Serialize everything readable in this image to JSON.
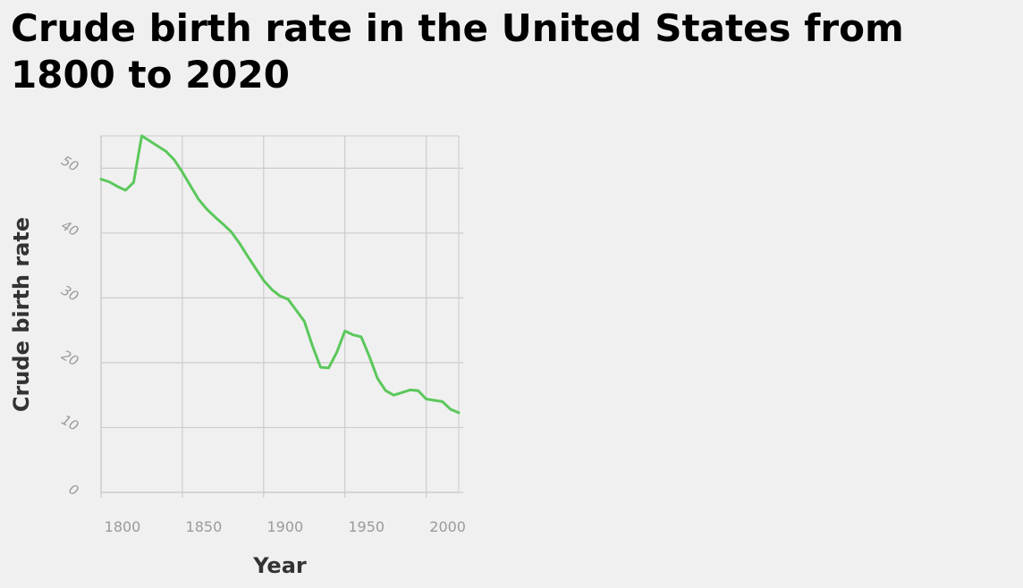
{
  "chart_data": {
    "type": "line",
    "title": "Crude birth rate in the United States from 1800 to 2020",
    "xlabel": "Year",
    "ylabel": "Crude birth rate",
    "xlim": [
      1800,
      2020
    ],
    "ylim": [
      0,
      55
    ],
    "x_ticks": [
      1800,
      1850,
      1900,
      1950,
      2000
    ],
    "x_tick_labels": [
      "1800",
      "1850",
      "1900",
      "1950",
      "2000"
    ],
    "y_ticks": [
      0,
      10,
      20,
      30,
      40,
      50
    ],
    "y_tick_labels": [
      "0",
      "10",
      "20",
      "30",
      "40",
      "50"
    ],
    "grid": true,
    "legend": "none",
    "series": [
      {
        "color": "#5bc85b",
        "x": [
          1800,
          1805,
          1810,
          1815,
          1820,
          1825,
          1830,
          1835,
          1840,
          1845,
          1850,
          1855,
          1860,
          1865,
          1870,
          1875,
          1880,
          1885,
          1890,
          1895,
          1900,
          1905,
          1910,
          1915,
          1920,
          1925,
          1930,
          1935,
          1940,
          1945,
          1950,
          1955,
          1960,
          1965,
          1970,
          1975,
          1980,
          1985,
          1990,
          1995,
          2000,
          2005,
          2010,
          2015,
          2020
        ],
        "y": [
          48.3,
          47.9,
          47.2,
          46.6,
          47.8,
          55,
          54.2,
          53.4,
          52.6,
          51.3,
          49.4,
          47.3,
          45.2,
          43.7,
          42.5,
          41.4,
          40.2,
          38.5,
          36.5,
          34.6,
          32.7,
          31.3,
          30.3,
          29.8,
          28.1,
          26.4,
          22.6,
          19.3,
          19.2,
          21.6,
          24.9,
          24.3,
          24.0,
          21.0,
          17.6,
          15.7,
          15.0,
          15.4,
          15.8,
          15.7,
          14.4,
          14.2,
          14.0,
          12.8,
          12.3
        ]
      }
    ]
  }
}
